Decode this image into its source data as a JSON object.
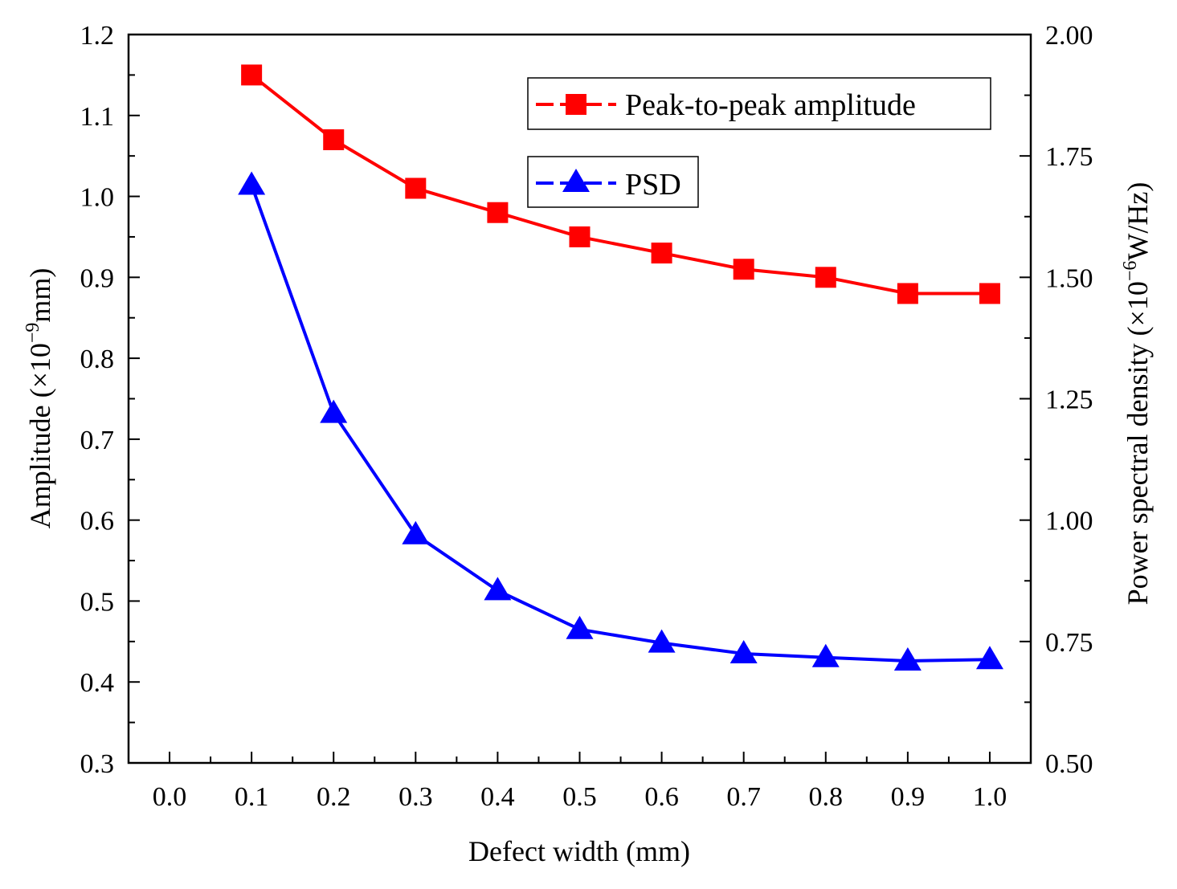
{
  "chart_data": {
    "type": "line",
    "title": "",
    "x": [
      0.1,
      0.2,
      0.3,
      0.4,
      0.5,
      0.6,
      0.7,
      0.8,
      0.9,
      1.0
    ],
    "xlabel": "Defect width (mm)",
    "xlim": [
      -0.05,
      1.05
    ],
    "xticks": [
      "0.0",
      "0.1",
      "0.2",
      "0.3",
      "0.4",
      "0.5",
      "0.6",
      "0.7",
      "0.8",
      "0.9",
      "1.0"
    ],
    "ylabel_left": {
      "prefix": "Amplitude (×10",
      "exponent": "−9",
      "suffix": "mm)"
    },
    "ylim_left": [
      0.3,
      1.2
    ],
    "yticks_left": [
      "0.3",
      "0.4",
      "0.5",
      "0.6",
      "0.7",
      "0.8",
      "0.9",
      "1.0",
      "1.1",
      "1.2"
    ],
    "ylabel_right": {
      "prefix": "Power spectral density (×10",
      "exponent": "−6",
      "suffix": "W/Hz)"
    },
    "ylim_right": [
      0.5,
      2.0
    ],
    "yticks_right": [
      "0.50",
      "0.75",
      "1.00",
      "1.25",
      "1.50",
      "1.75",
      "2.00"
    ],
    "grid": false,
    "series": [
      {
        "name": "Peak-to-peak amplitude",
        "axis": "left",
        "color": "#ff0000",
        "marker": "square",
        "values": [
          1.15,
          1.07,
          1.01,
          0.98,
          0.95,
          0.93,
          0.91,
          0.9,
          0.88,
          0.88
        ]
      },
      {
        "name": "PSD",
        "axis": "right",
        "color": "#0000ff",
        "marker": "triangle",
        "values": [
          1.69,
          1.22,
          0.97,
          0.855,
          0.775,
          0.747,
          0.725,
          0.717,
          0.71,
          0.713
        ]
      }
    ],
    "legend_position": "top-right"
  }
}
